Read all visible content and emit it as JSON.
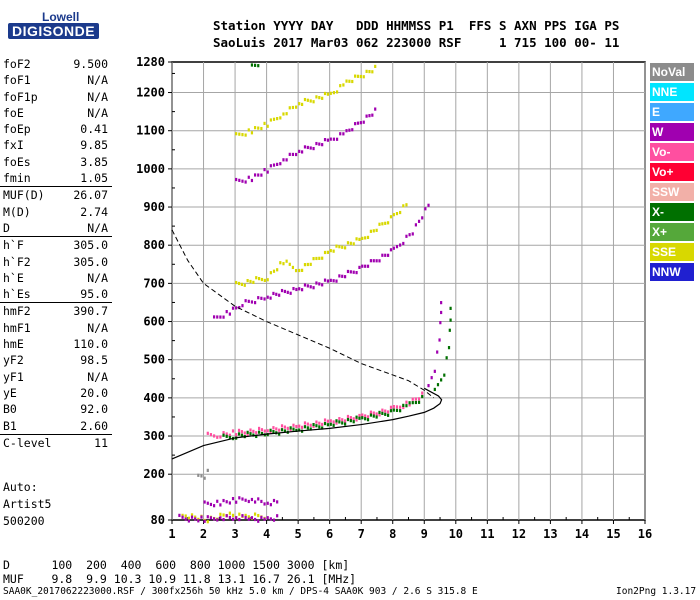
{
  "logo": {
    "line1": "Lowell",
    "line2": "DIGISONDE"
  },
  "header": {
    "line1": "Station YYYY DAY   DDD HHMMSS P1  FFS S AXN PPS IGA PS",
    "line2": "SaoLuis 2017 Mar03 062 223000 RSF     1 715 100 00- 11"
  },
  "params": [
    {
      "k": "foF2",
      "v": "9.500"
    },
    {
      "k": "foF1",
      "v": "N/A"
    },
    {
      "k": "foF1p",
      "v": "N/A"
    },
    {
      "k": "foE",
      "v": "N/A"
    },
    {
      "k": "foEp",
      "v": "0.41"
    },
    {
      "k": "fxI",
      "v": "9.85"
    },
    {
      "k": "foEs",
      "v": "3.85"
    },
    {
      "k": "fmin",
      "v": "1.05"
    },
    {
      "k": "MUF(D)",
      "v": "26.07"
    },
    {
      "k": "M(D)",
      "v": "2.74"
    },
    {
      "k": "D",
      "v": "N/A"
    },
    {
      "k": "h`F",
      "v": "305.0"
    },
    {
      "k": "h`F2",
      "v": "305.0"
    },
    {
      "k": "h`E",
      "v": "N/A"
    },
    {
      "k": "h`Es",
      "v": "95.0"
    },
    {
      "k": "hmF2",
      "v": "390.7"
    },
    {
      "k": "hmF1",
      "v": "N/A"
    },
    {
      "k": "hmE",
      "v": "110.0"
    },
    {
      "k": "yF2",
      "v": "98.5"
    },
    {
      "k": "yF1",
      "v": "N/A"
    },
    {
      "k": "yE",
      "v": "20.0"
    },
    {
      "k": "B0",
      "v": "92.0"
    },
    {
      "k": "B1",
      "v": "2.60"
    },
    {
      "k": "C-level",
      "v": "11"
    }
  ],
  "auto": {
    "l1": "Auto:",
    "l2": "Artist5",
    "l3": "500200"
  },
  "legend": [
    {
      "label": "NoVal",
      "color": "#8c8c8c"
    },
    {
      "label": "NNE",
      "color": "#00e5ff"
    },
    {
      "label": "E",
      "color": "#3fa8ff"
    },
    {
      "label": "W",
      "color": "#a000b0"
    },
    {
      "label": "Vo-",
      "color": "#ff4fa0"
    },
    {
      "label": "Vo+",
      "color": "#ff0033"
    },
    {
      "label": "SSW",
      "color": "#f2b0a8"
    },
    {
      "label": "X-",
      "color": "#007000"
    },
    {
      "label": "X+",
      "color": "#55a83a"
    },
    {
      "label": "SSE",
      "color": "#d8d800"
    },
    {
      "label": "NNW",
      "color": "#2020d0"
    }
  ],
  "footer": {
    "d_line": "D      100  200  400  600  800 1000 1500 3000 [km]",
    "muf_line": "MUF    9.8  9.9 10.3 10.9 11.8 13.1 16.7 26.1 [MHz]",
    "file_line": "SAA0K_2017062223000.RSF / 300fx256h 50 kHz 5.0 km / DPS-4 SAA0K 903 / 2.6 S 315.8 E",
    "version": "Ion2Png 1.3.17"
  },
  "chart_data": {
    "type": "scatter",
    "xlim": [
      1,
      16
    ],
    "ylim": [
      80,
      1280
    ],
    "x_ticks": [
      "1",
      "2",
      "3",
      "4",
      "5",
      "6",
      "7",
      "8",
      "9",
      "10",
      "11",
      "12",
      "13",
      "14",
      "15",
      "16"
    ],
    "y_ticks": [
      "80",
      "200",
      "300",
      "400",
      "500",
      "600",
      "700",
      "800",
      "900",
      "1000",
      "1100",
      "1200",
      "1280"
    ],
    "grid": true,
    "echo_traces": [
      {
        "color": "#ff4fa0",
        "x": [
          2.1,
          2.5,
          3.0,
          4.0,
          5.0,
          6.0,
          7.0,
          8.0,
          8.5,
          9.0
        ],
        "y": [
          305,
          308,
          312,
          320,
          330,
          342,
          355,
          375,
          392,
          415
        ]
      },
      {
        "color": "#007000",
        "x": [
          2.6,
          3.0,
          4.0,
          5.0,
          6.0,
          7.0,
          8.0,
          8.5,
          9.0
        ],
        "y": [
          300,
          305,
          312,
          322,
          335,
          350,
          368,
          385,
          408
        ]
      },
      {
        "color": "#a000b0",
        "x": [
          9.1,
          9.3,
          9.45,
          9.5,
          9.5
        ],
        "y": [
          430,
          480,
          560,
          630,
          690
        ]
      },
      {
        "color": "#007000",
        "x": [
          9.3,
          9.6,
          9.75,
          9.8,
          9.8
        ],
        "y": [
          420,
          470,
          540,
          610,
          680
        ]
      },
      {
        "color": "#a000b0",
        "x": [
          2.3,
          2.8,
          3.2,
          4.0,
          5.0,
          6.0,
          7.0,
          8.0,
          8.6,
          9.2
        ],
        "y": [
          610,
          630,
          650,
          670,
          690,
          710,
          745,
          790,
          840,
          920
        ]
      },
      {
        "color": "#d8d800",
        "x": [
          3.0,
          4.0,
          4.5,
          5.0,
          6.0,
          7.0,
          8.0,
          8.5
        ],
        "y": [
          700,
          720,
          760,
          740,
          790,
          820,
          880,
          915
        ]
      },
      {
        "color": "#a000b0",
        "x": [
          3.0,
          3.5,
          4.0,
          4.5,
          5.0,
          6.0,
          6.5,
          7.5
        ],
        "y": [
          970,
          980,
          1000,
          1030,
          1050,
          1080,
          1100,
          1160
        ]
      },
      {
        "color": "#d8d800",
        "x": [
          3.0,
          3.5,
          4.0,
          4.5,
          5.0,
          6.0,
          6.5,
          7.5
        ],
        "y": [
          1090,
          1105,
          1120,
          1150,
          1175,
          1200,
          1230,
          1270
        ]
      },
      {
        "color": "#007000",
        "x": [
          3.5,
          3.8
        ],
        "y": [
          1270,
          1280
        ]
      },
      {
        "color": "#d8d800",
        "x": [
          1.3,
          1.5,
          1.8,
          2.0,
          2.3,
          2.8,
          3.3,
          4.0
        ],
        "y": [
          90,
          95,
          90,
          85,
          88,
          100,
          92,
          95
        ]
      },
      {
        "color": "#a000b0",
        "x": [
          2.0,
          2.5,
          3.0,
          3.5,
          4.0,
          4.4
        ],
        "y": [
          125,
          130,
          135,
          140,
          128,
          130
        ]
      },
      {
        "color": "#a000b0",
        "x": [
          1.2,
          1.5,
          2.0,
          2.5,
          3.0,
          3.5,
          4.0,
          4.4
        ],
        "y": [
          90,
          88,
          85,
          92,
          90,
          88,
          86,
          90
        ]
      },
      {
        "color": "#8c8c8c",
        "x": [
          1.8,
          2.0,
          2.2
        ],
        "y": [
          195,
          200,
          220
        ]
      }
    ],
    "profile_line": {
      "x": [
        1,
        2,
        3,
        4,
        5,
        6,
        7,
        8,
        8.5,
        9.0,
        9.3,
        9.5,
        9.55,
        9.45,
        9.0
      ],
      "y": [
        240,
        275,
        295,
        305,
        313,
        320,
        330,
        343,
        352,
        362,
        373,
        385,
        395,
        405,
        425
      ]
    },
    "muf_curve": {
      "x": [
        1.0,
        1.5,
        2.0,
        2.5,
        3.0,
        3.5,
        4.0,
        5.0,
        6.0,
        7.0,
        8.0,
        8.5,
        9.0,
        9.3
      ],
      "y": [
        840,
        760,
        700,
        670,
        640,
        620,
        600,
        565,
        530,
        490,
        460,
        445,
        420,
        400
      ]
    }
  }
}
